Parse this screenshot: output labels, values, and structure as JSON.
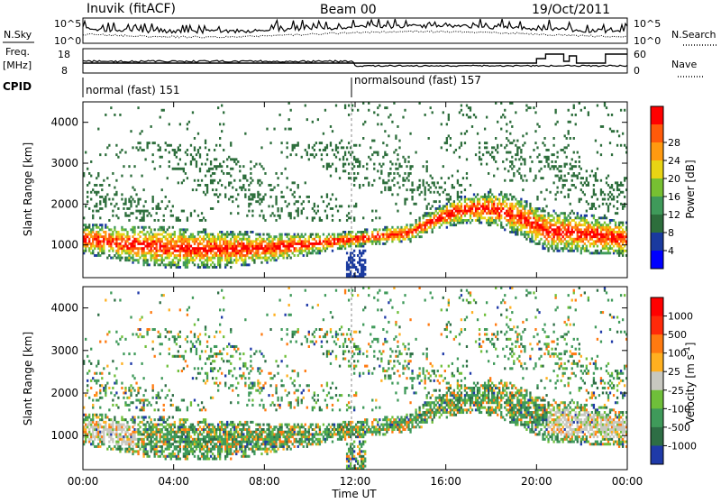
{
  "header": {
    "station": "Inuvik (fitACF)",
    "beam": "Beam 00",
    "date": "19/Oct/2011"
  },
  "left_labels": {
    "nsky": "N.Sky",
    "freq_line1": "Freq.",
    "freq_line2": "[MHz]",
    "cpid": "CPID"
  },
  "right_labels": {
    "nsearch": "N.Search",
    "nave": "Nave"
  },
  "strip_ticks": {
    "noise_left": [
      "10^5",
      "10^0"
    ],
    "noise_right": [
      "10^5",
      "10^0"
    ],
    "freq_left": [
      "18",
      "8"
    ],
    "nave_right": [
      "60",
      "0"
    ]
  },
  "cpid_segments": [
    {
      "label": "normal (fast) 151",
      "start": "00:00",
      "end": "12:00"
    },
    {
      "label": "normalsound (fast) 157",
      "start": "12:00",
      "end": "24:00"
    }
  ],
  "colors": {
    "velocity_ground": "#c8c8c0"
  },
  "chart_data": [
    {
      "type": "heatmap",
      "name_id": "power-panel",
      "ylabel": "Slant Range [km]",
      "ylim": [
        200,
        4500
      ],
      "yticks": [
        1000,
        2000,
        3000,
        4000
      ],
      "colorbar_label": "Power [dB]",
      "colorbar_ticks": [
        4,
        8,
        12,
        16,
        20,
        24,
        28
      ],
      "colorbar_colors": [
        "#0000ff",
        "#1a3a9f",
        "#2d6e3c",
        "#3f9a5a",
        "#77c032",
        "#e8d414",
        "#ff9a10",
        "#ff5a0a",
        "#ff0000"
      ],
      "xticks": [
        "00:00",
        "04:00",
        "08:00",
        "12:00",
        "16:00",
        "20:00",
        "00:00"
      ]
    },
    {
      "type": "heatmap",
      "name_id": "velocity-panel",
      "ylabel": "Slant Range [km]",
      "ylim": [
        200,
        4500
      ],
      "yticks": [
        1000,
        2000,
        3000,
        4000
      ],
      "colorbar_label": "Velocity [m s^-1]",
      "colorbar_ticks": [
        "1000",
        "500",
        "100",
        "25",
        "-25",
        "-100",
        "-500",
        "-1000"
      ],
      "colorbar_colors": [
        "#1f3aa8",
        "#2e6e45",
        "#3f9a5a",
        "#6fbf3a",
        "#c8c8c0",
        "#ffb020",
        "#ff7a10",
        "#ff2a0a",
        "#ff0000"
      ],
      "xticks": [
        "00:00",
        "04:00",
        "08:00",
        "12:00",
        "16:00",
        "20:00",
        "00:00"
      ],
      "xlabel": "Time UT"
    }
  ]
}
